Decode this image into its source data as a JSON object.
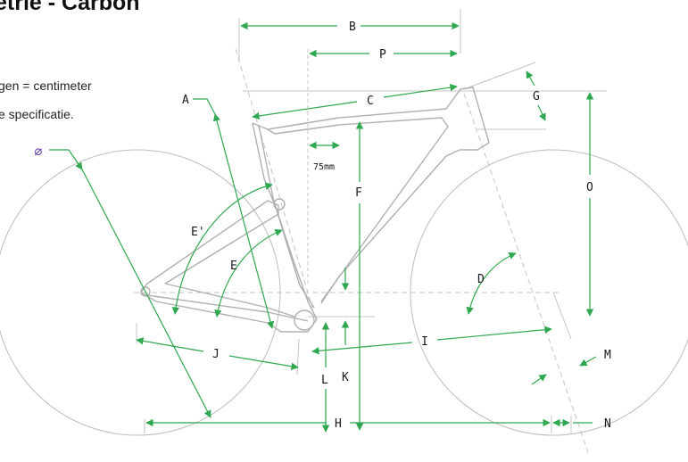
{
  "header": {
    "title": "etrie - Carbon",
    "note_line1": "gen = centimeter",
    "note_line2": "e specificatie."
  },
  "labels": {
    "A": "A",
    "B": "B",
    "C": "C",
    "D": "D",
    "E": "E",
    "E_prime": "E'",
    "F": "F",
    "G": "G",
    "H": "H",
    "I": "I",
    "J": "J",
    "K": "K",
    "L": "L",
    "M": "M",
    "N": "N",
    "O": "O",
    "P": "P",
    "diameter": "⌀",
    "seat_offset": "75mm"
  },
  "colors": {
    "accent": "#2fa84f",
    "diameter_symbol": "#6a3bb0",
    "wheel": "#bdbdbd",
    "frame": "#b0b0b0",
    "guide": "#c4c4c4"
  }
}
